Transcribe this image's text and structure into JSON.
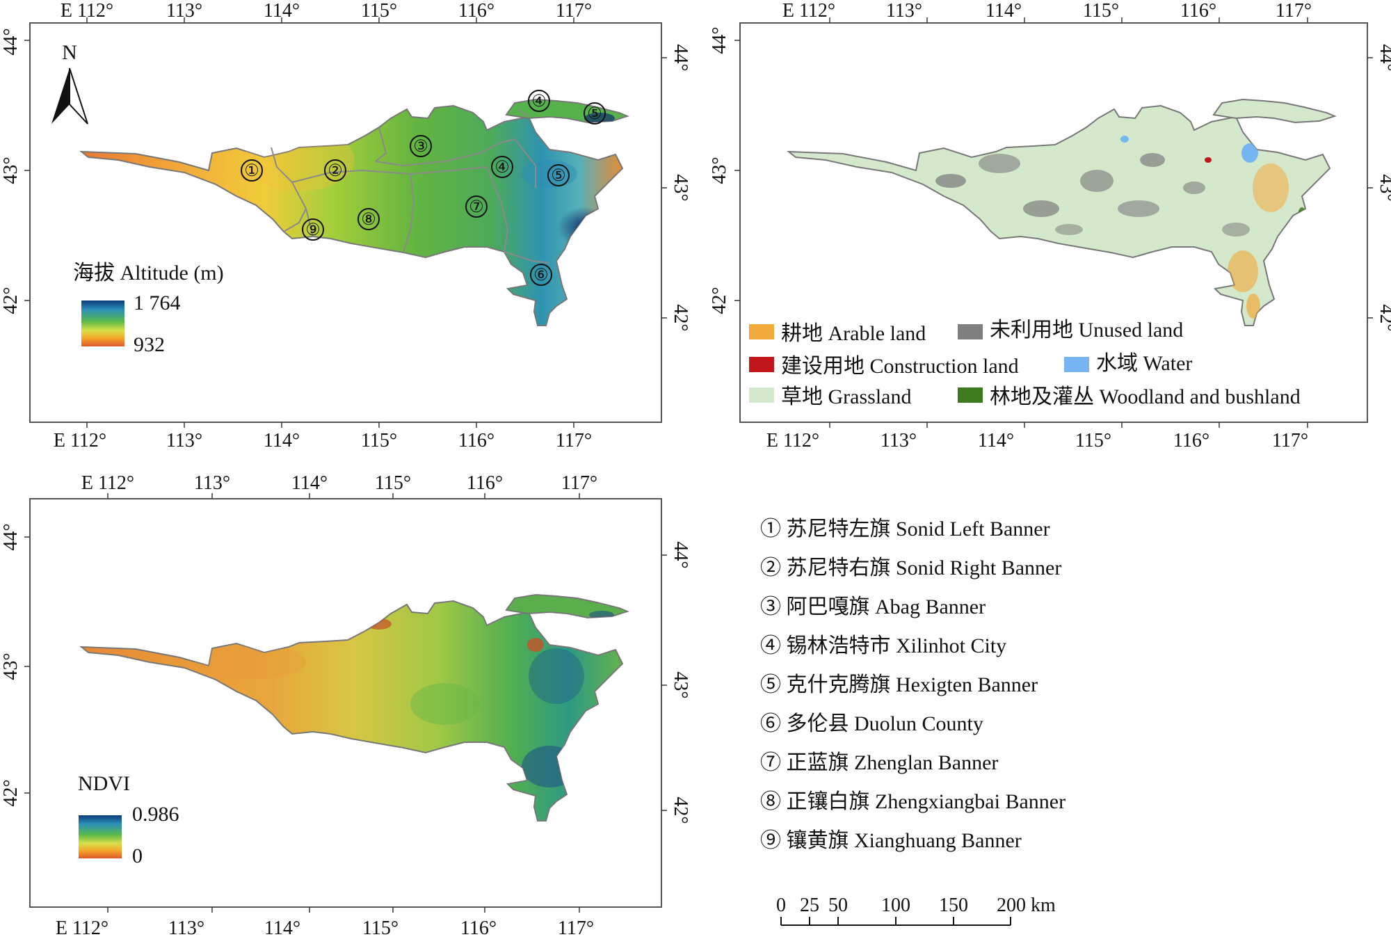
{
  "longitude_labels": [
    "E 112°",
    "113°",
    "114°",
    "115°",
    "116°",
    "117°"
  ],
  "latitude_labels": [
    "44°",
    "43°",
    "42°"
  ],
  "compass": {
    "label": "N"
  },
  "altitude_map": {
    "title": "海拔 Altitude (m)",
    "max": "1 764",
    "min": "932",
    "ramp_colors": [
      "#0d3b7a",
      "#2b8fb8",
      "#59b84a",
      "#d7e04a",
      "#f4a62a",
      "#e0572a"
    ]
  },
  "ndvi_map": {
    "title": "NDVI",
    "max": "0.986",
    "min": "0",
    "ramp_colors": [
      "#0d3b7a",
      "#2b8fb8",
      "#59b84a",
      "#d7e04a",
      "#f4a62a",
      "#e0572a"
    ]
  },
  "landuse_legend": [
    {
      "label": "耕地 Arable land",
      "color": "#f2a93b"
    },
    {
      "label": "未利用地 Unused land",
      "color": "#7f7f7f"
    },
    {
      "label": "建设用地 Construction land",
      "color": "#c0161b"
    },
    {
      "label": "水域 Water",
      "color": "#75b6f2"
    },
    {
      "label": "草地 Grassland",
      "color": "#d4e8cc"
    },
    {
      "label": "林地及灌丛 Woodland and bushland",
      "color": "#3e7a1e"
    }
  ],
  "banner_markers": [
    "①",
    "②",
    "③",
    "④",
    "⑤",
    "⑥",
    "⑦",
    "⑧",
    "⑨"
  ],
  "banner_list": [
    "① 苏尼特左旗 Sonid Left Banner",
    "② 苏尼特右旗 Sonid Right Banner",
    "③ 阿巴嘎旗 Abag Banner",
    "④ 锡林浩特市 Xilinhot City",
    "⑤ 克什克腾旗 Hexigten Banner",
    "⑥ 多伦县 Duolun County",
    "⑦ 正蓝旗 Zhenglan Banner",
    "⑧ 正镶白旗 Zhengxiangbai Banner",
    "⑨ 镶黄旗 Xianghuang Banner"
  ],
  "scale_bar": {
    "ticks": [
      "0",
      "25",
      "50",
      "100",
      "150",
      "200 km"
    ]
  }
}
